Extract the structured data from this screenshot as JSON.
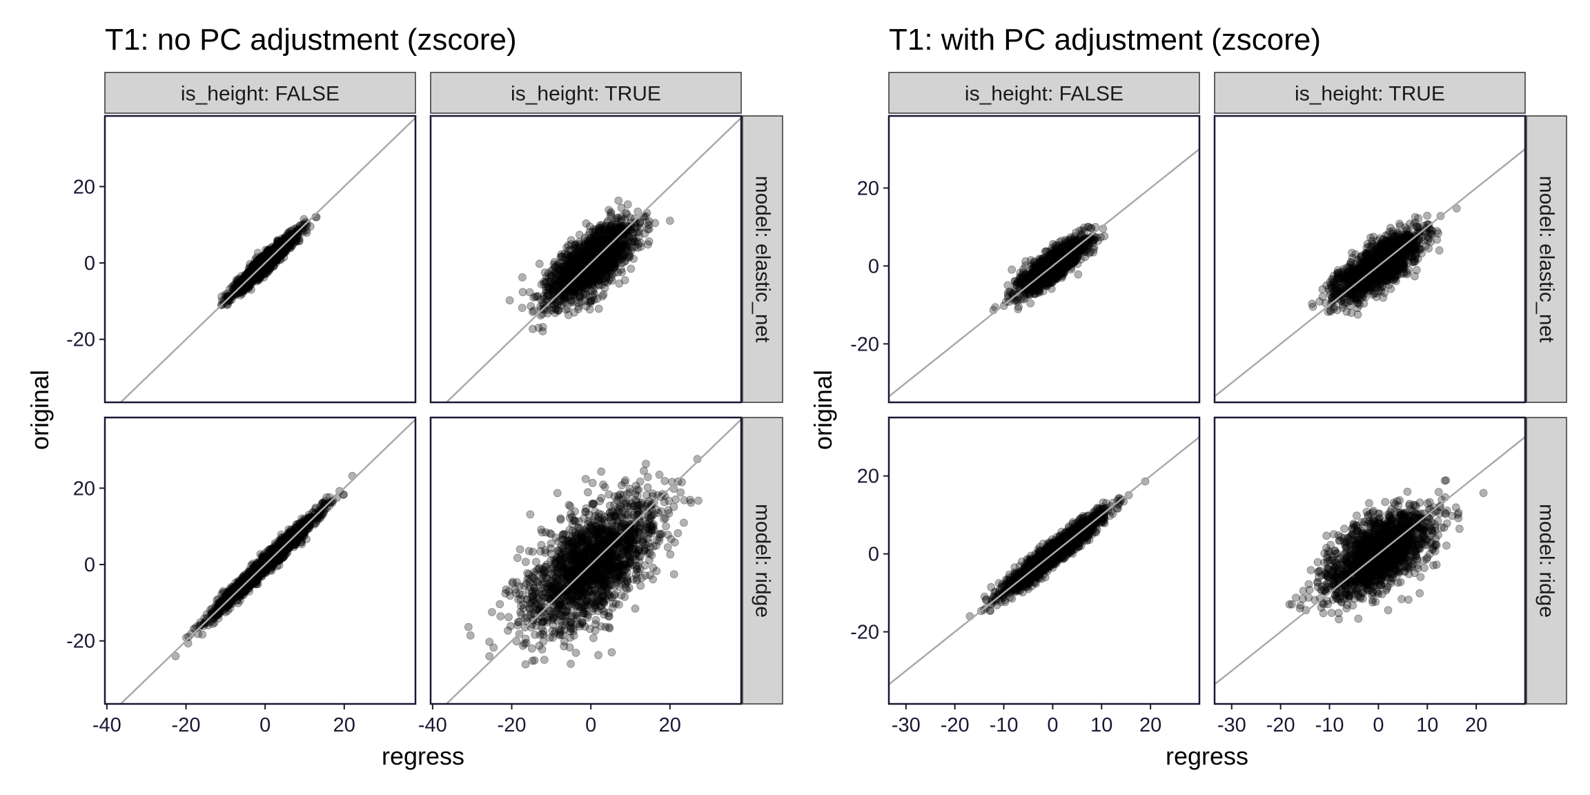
{
  "colors": {
    "point": "#000000",
    "frame": "#1a1733",
    "strip_fill": "#d3d3d3",
    "strip_border": "#333333",
    "diagonal": "#a9a9a9",
    "axis_text": "#1a1733"
  },
  "chart_data": [
    {
      "type": "scatter",
      "title": "T1: no PC adjustment (zscore)",
      "xlabel": "regress",
      "ylabel": "original",
      "facet_columns": [
        "is_height: FALSE",
        "is_height: TRUE"
      ],
      "facet_rows": [
        "model: elastic_net",
        "model: ridge"
      ],
      "xlim": [
        -40.5,
        38
      ],
      "ylim_rows": [
        [
          -36.5,
          38.5
        ],
        [
          -36.5,
          38.5
        ]
      ],
      "x_ticks": [
        -40,
        -20,
        0,
        20
      ],
      "x_tick_labels": [
        "-40",
        "-20",
        "0",
        "20"
      ],
      "y_ticks": [
        -20,
        0,
        20
      ],
      "y_tick_labels": [
        "-20",
        "0",
        "20"
      ],
      "reference_line": "y = x",
      "point_opacity": 0.3,
      "panels": [
        {
          "row": 0,
          "col": 0,
          "n": 1400,
          "sx": 4.0,
          "r": 0.96,
          "x_range": [
            -11,
            13
          ],
          "y_range": [
            -11,
            12
          ]
        },
        {
          "row": 0,
          "col": 1,
          "n": 1500,
          "sx": 5.5,
          "r": 0.74,
          "x_range": [
            -25,
            20
          ],
          "y_range": [
            -30,
            23
          ]
        },
        {
          "row": 1,
          "col": 0,
          "n": 1900,
          "sx": 6.5,
          "r": 0.985,
          "x_range": [
            -27,
            27
          ],
          "y_range": [
            -27,
            27
          ]
        },
        {
          "row": 1,
          "col": 1,
          "n": 1700,
          "sx": 8.5,
          "r": 0.64,
          "x_range": [
            -38,
            37
          ],
          "y_range": [
            -37,
            37
          ]
        }
      ]
    },
    {
      "type": "scatter",
      "title": "T1: with PC adjustment (zscore)",
      "xlabel": "regress",
      "ylabel": "original",
      "facet_columns": [
        "is_height: FALSE",
        "is_height: TRUE"
      ],
      "facet_rows": [
        "model: elastic_net",
        "model: ridge"
      ],
      "xlim": [
        -33.5,
        30
      ],
      "ylim_rows": [
        [
          -35,
          38.5
        ],
        [
          -38.5,
          35
        ]
      ],
      "x_ticks": [
        -30,
        -20,
        -10,
        0,
        10,
        20
      ],
      "x_tick_labels": [
        "-30",
        "-20",
        "-10",
        "0",
        "10",
        "20"
      ],
      "y_ticks": [
        -20,
        0,
        20
      ],
      "y_tick_labels": [
        "-20",
        "0",
        "20"
      ],
      "reference_line": "y = x",
      "point_opacity": 0.3,
      "panels": [
        {
          "row": 0,
          "col": 0,
          "n": 1300,
          "sx": 3.5,
          "r": 0.85,
          "x_range": [
            -17,
            14
          ],
          "y_range": [
            -16,
            10
          ]
        },
        {
          "row": 0,
          "col": 1,
          "n": 1400,
          "sx": 4.5,
          "r": 0.78,
          "x_range": [
            -30,
            16
          ],
          "y_range": [
            -31,
            17
          ]
        },
        {
          "row": 1,
          "col": 0,
          "n": 1800,
          "sx": 5.0,
          "r": 0.96,
          "x_range": [
            -17,
            21
          ],
          "y_range": [
            -16,
            21
          ]
        },
        {
          "row": 1,
          "col": 1,
          "n": 1600,
          "sx": 5.5,
          "r": 0.62,
          "x_range": [
            -30,
            28
          ],
          "y_range": [
            -38,
            33
          ]
        }
      ]
    }
  ]
}
